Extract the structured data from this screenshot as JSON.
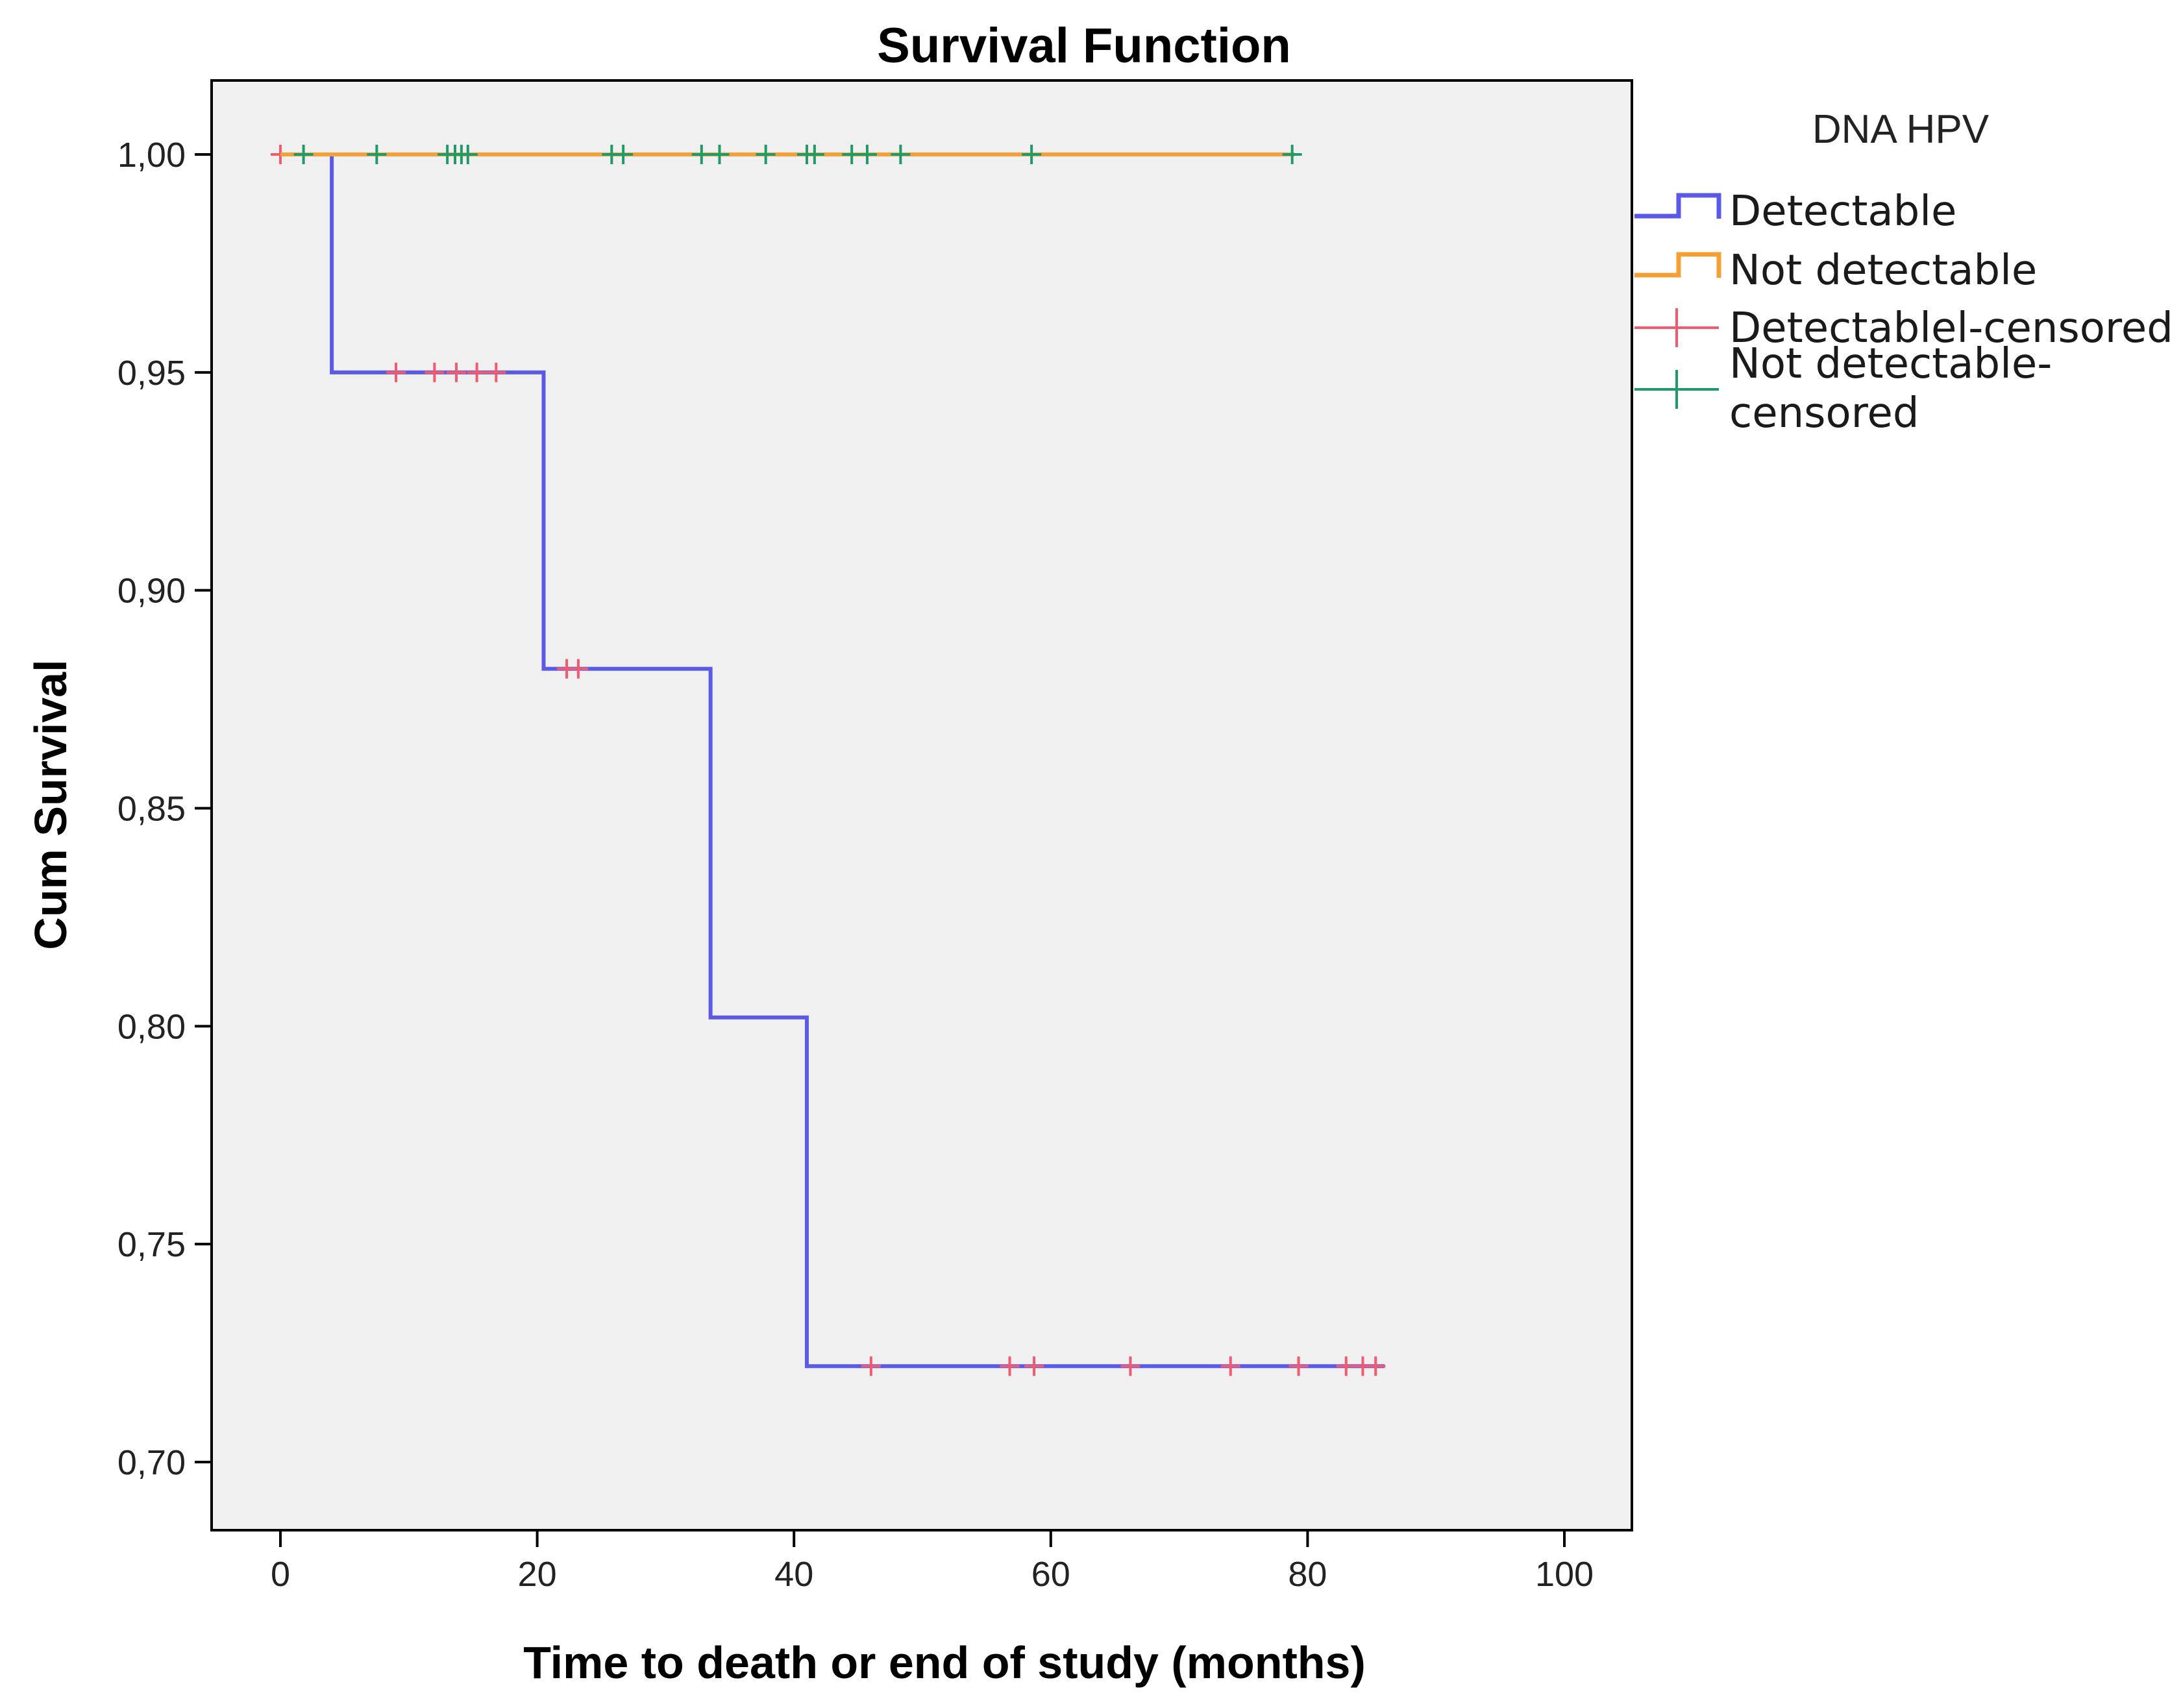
{
  "chart_data": {
    "type": "line",
    "title": "Survival Function",
    "xlabel": "Time to death or end of study (months)",
    "ylabel": "Cum Survival",
    "xlim": [
      0,
      100
    ],
    "ylim": [
      0.7,
      1.0
    ],
    "x_ticks": [
      0,
      20,
      40,
      60,
      80,
      100
    ],
    "x_tick_labels": [
      "0",
      "20",
      "40",
      "60",
      "80",
      "100"
    ],
    "y_ticks": [
      0.7,
      0.75,
      0.8,
      0.85,
      0.9,
      0.95,
      1.0
    ],
    "y_tick_labels": [
      "0,70",
      "0,75",
      "0,80",
      "0,85",
      "0,90",
      "0,95",
      "1,00"
    ],
    "grid": false,
    "legend": {
      "title": "DNA HPV",
      "placement": "right",
      "entries": [
        {
          "label": "Detectable",
          "kind": "line",
          "color": "#5a5ae6"
        },
        {
          "label": "Not detectable",
          "kind": "line",
          "color": "#f5a035"
        },
        {
          "label": "Detectablel-censored",
          "kind": "censor",
          "color": "#f25a6e"
        },
        {
          "label": "Not detectable-censored",
          "label_lines": [
            "Not detectable-",
            "censored"
          ],
          "kind": "censor",
          "color": "#1f9a6a"
        }
      ]
    },
    "series": [
      {
        "name": "Detectable",
        "color": "#5a5ae6",
        "step_x": [
          0,
          4,
          20.5,
          33.5,
          41,
          86
        ],
        "step_y": [
          1.0,
          0.95,
          0.882,
          0.802,
          0.722,
          0.722
        ],
        "censor_color": "#f25a6e",
        "censored_x": [
          0,
          9,
          12,
          13.7,
          15.3,
          16.8,
          22.3,
          23.2,
          46,
          56.8,
          58.7,
          66.2,
          74,
          79.3,
          83,
          84.3,
          85.3
        ]
      },
      {
        "name": "Not detectable",
        "color": "#f5a035",
        "step_x": [
          0,
          79
        ],
        "step_y": [
          1.0,
          1.0
        ],
        "censor_color": "#1f9a6a",
        "censored_x": [
          1.8,
          7.5,
          13,
          13.6,
          14.1,
          14.6,
          25.8,
          26.7,
          32.8,
          34.2,
          37.8,
          41,
          41.6,
          44.5,
          45.7,
          48.3,
          58.5,
          78.8
        ]
      }
    ]
  }
}
